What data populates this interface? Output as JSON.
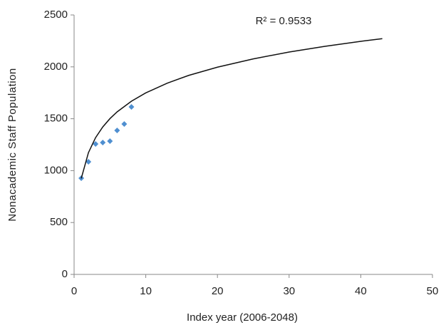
{
  "chart_data": {
    "type": "scatter",
    "x_label": "Index year (2006-2048)",
    "y_label": "Nonacademic Staff Population",
    "annotation": "R² = 0.9533",
    "xlim": [
      0,
      50
    ],
    "xticks": [
      0,
      10,
      20,
      30,
      40,
      50
    ],
    "ylim": [
      0,
      2500
    ],
    "yticks": [
      0,
      500,
      1000,
      1500,
      2000,
      2500
    ],
    "series": [
      {
        "mode": "markers",
        "color": "#4f8fd0",
        "x": [
          1,
          2,
          3,
          4,
          5,
          6,
          7,
          8
        ],
        "values": [
          927,
          1085,
          1257,
          1271,
          1284,
          1387,
          1449,
          1614
        ]
      },
      {
        "mode": "line",
        "color": "#111111",
        "x": [
          1,
          2,
          3,
          4,
          5,
          6,
          8,
          10,
          13,
          16,
          20,
          25,
          30,
          35,
          40,
          43
        ],
        "values": [
          925,
          1173,
          1318,
          1421,
          1501,
          1566,
          1669,
          1749,
          1843,
          1918,
          1997,
          2077,
          2143,
          2198,
          2246,
          2272
        ]
      }
    ]
  }
}
